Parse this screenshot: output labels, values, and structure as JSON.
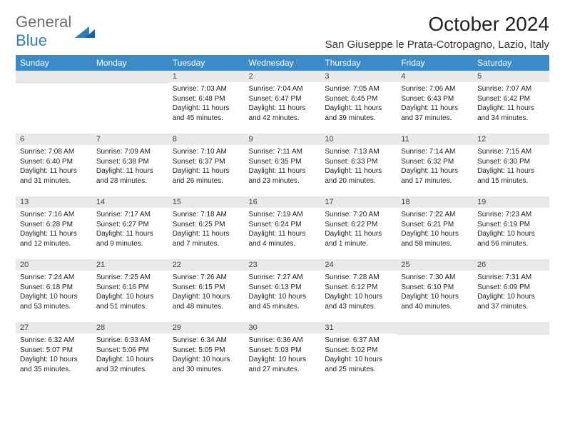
{
  "logo": {
    "text1": "General",
    "text2": "Blue",
    "color1": "#6f6f6f",
    "color2": "#2f7fbf",
    "icon_color": "#2f7fbf"
  },
  "title": "October 2024",
  "location": "San Giuseppe le Prata-Cotropagno, Lazio, Italy",
  "header_bg": "#3b8bc9",
  "header_fg": "#ffffff",
  "daynum_bg": "#e9e9e9",
  "weekdays": [
    "Sunday",
    "Monday",
    "Tuesday",
    "Wednesday",
    "Thursday",
    "Friday",
    "Saturday"
  ],
  "weeks": [
    [
      null,
      null,
      {
        "n": "1",
        "sr": "Sunrise: 7:03 AM",
        "ss": "Sunset: 6:48 PM",
        "dl": "Daylight: 11 hours and 45 minutes."
      },
      {
        "n": "2",
        "sr": "Sunrise: 7:04 AM",
        "ss": "Sunset: 6:47 PM",
        "dl": "Daylight: 11 hours and 42 minutes."
      },
      {
        "n": "3",
        "sr": "Sunrise: 7:05 AM",
        "ss": "Sunset: 6:45 PM",
        "dl": "Daylight: 11 hours and 39 minutes."
      },
      {
        "n": "4",
        "sr": "Sunrise: 7:06 AM",
        "ss": "Sunset: 6:43 PM",
        "dl": "Daylight: 11 hours and 37 minutes."
      },
      {
        "n": "5",
        "sr": "Sunrise: 7:07 AM",
        "ss": "Sunset: 6:42 PM",
        "dl": "Daylight: 11 hours and 34 minutes."
      }
    ],
    [
      {
        "n": "6",
        "sr": "Sunrise: 7:08 AM",
        "ss": "Sunset: 6:40 PM",
        "dl": "Daylight: 11 hours and 31 minutes."
      },
      {
        "n": "7",
        "sr": "Sunrise: 7:09 AM",
        "ss": "Sunset: 6:38 PM",
        "dl": "Daylight: 11 hours and 28 minutes."
      },
      {
        "n": "8",
        "sr": "Sunrise: 7:10 AM",
        "ss": "Sunset: 6:37 PM",
        "dl": "Daylight: 11 hours and 26 minutes."
      },
      {
        "n": "9",
        "sr": "Sunrise: 7:11 AM",
        "ss": "Sunset: 6:35 PM",
        "dl": "Daylight: 11 hours and 23 minutes."
      },
      {
        "n": "10",
        "sr": "Sunrise: 7:13 AM",
        "ss": "Sunset: 6:33 PM",
        "dl": "Daylight: 11 hours and 20 minutes."
      },
      {
        "n": "11",
        "sr": "Sunrise: 7:14 AM",
        "ss": "Sunset: 6:32 PM",
        "dl": "Daylight: 11 hours and 17 minutes."
      },
      {
        "n": "12",
        "sr": "Sunrise: 7:15 AM",
        "ss": "Sunset: 6:30 PM",
        "dl": "Daylight: 11 hours and 15 minutes."
      }
    ],
    [
      {
        "n": "13",
        "sr": "Sunrise: 7:16 AM",
        "ss": "Sunset: 6:28 PM",
        "dl": "Daylight: 11 hours and 12 minutes."
      },
      {
        "n": "14",
        "sr": "Sunrise: 7:17 AM",
        "ss": "Sunset: 6:27 PM",
        "dl": "Daylight: 11 hours and 9 minutes."
      },
      {
        "n": "15",
        "sr": "Sunrise: 7:18 AM",
        "ss": "Sunset: 6:25 PM",
        "dl": "Daylight: 11 hours and 7 minutes."
      },
      {
        "n": "16",
        "sr": "Sunrise: 7:19 AM",
        "ss": "Sunset: 6:24 PM",
        "dl": "Daylight: 11 hours and 4 minutes."
      },
      {
        "n": "17",
        "sr": "Sunrise: 7:20 AM",
        "ss": "Sunset: 6:22 PM",
        "dl": "Daylight: 11 hours and 1 minute."
      },
      {
        "n": "18",
        "sr": "Sunrise: 7:22 AM",
        "ss": "Sunset: 6:21 PM",
        "dl": "Daylight: 10 hours and 58 minutes."
      },
      {
        "n": "19",
        "sr": "Sunrise: 7:23 AM",
        "ss": "Sunset: 6:19 PM",
        "dl": "Daylight: 10 hours and 56 minutes."
      }
    ],
    [
      {
        "n": "20",
        "sr": "Sunrise: 7:24 AM",
        "ss": "Sunset: 6:18 PM",
        "dl": "Daylight: 10 hours and 53 minutes."
      },
      {
        "n": "21",
        "sr": "Sunrise: 7:25 AM",
        "ss": "Sunset: 6:16 PM",
        "dl": "Daylight: 10 hours and 51 minutes."
      },
      {
        "n": "22",
        "sr": "Sunrise: 7:26 AM",
        "ss": "Sunset: 6:15 PM",
        "dl": "Daylight: 10 hours and 48 minutes."
      },
      {
        "n": "23",
        "sr": "Sunrise: 7:27 AM",
        "ss": "Sunset: 6:13 PM",
        "dl": "Daylight: 10 hours and 45 minutes."
      },
      {
        "n": "24",
        "sr": "Sunrise: 7:28 AM",
        "ss": "Sunset: 6:12 PM",
        "dl": "Daylight: 10 hours and 43 minutes."
      },
      {
        "n": "25",
        "sr": "Sunrise: 7:30 AM",
        "ss": "Sunset: 6:10 PM",
        "dl": "Daylight: 10 hours and 40 minutes."
      },
      {
        "n": "26",
        "sr": "Sunrise: 7:31 AM",
        "ss": "Sunset: 6:09 PM",
        "dl": "Daylight: 10 hours and 37 minutes."
      }
    ],
    [
      {
        "n": "27",
        "sr": "Sunrise: 6:32 AM",
        "ss": "Sunset: 5:07 PM",
        "dl": "Daylight: 10 hours and 35 minutes."
      },
      {
        "n": "28",
        "sr": "Sunrise: 6:33 AM",
        "ss": "Sunset: 5:06 PM",
        "dl": "Daylight: 10 hours and 32 minutes."
      },
      {
        "n": "29",
        "sr": "Sunrise: 6:34 AM",
        "ss": "Sunset: 5:05 PM",
        "dl": "Daylight: 10 hours and 30 minutes."
      },
      {
        "n": "30",
        "sr": "Sunrise: 6:36 AM",
        "ss": "Sunset: 5:03 PM",
        "dl": "Daylight: 10 hours and 27 minutes."
      },
      {
        "n": "31",
        "sr": "Sunrise: 6:37 AM",
        "ss": "Sunset: 5:02 PM",
        "dl": "Daylight: 10 hours and 25 minutes."
      },
      null,
      null
    ]
  ]
}
